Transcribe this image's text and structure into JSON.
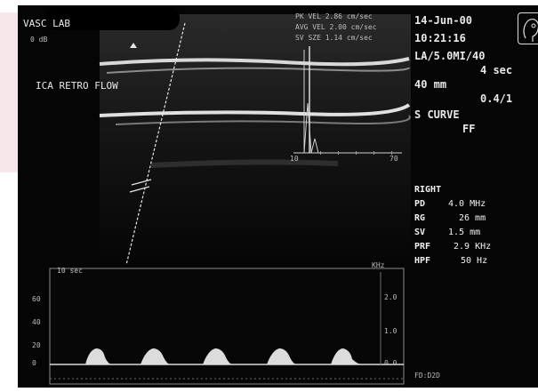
{
  "header": {
    "lab": "VASC LAB",
    "sub": "0 dB",
    "date": "14-Jun-00",
    "time": "10:21:16",
    "probe": "LA/5.0MI/40",
    "sweep": "4 sec",
    "depth": "40 mm",
    "ratio": "0.4/1",
    "curve_label": "S CURVE",
    "curve_value": "FF"
  },
  "velocities": [
    {
      "label": "PK VEL",
      "value": "2.86 cm/sec"
    },
    {
      "label": "AVG VEL",
      "value": "2.00 cm/sec"
    },
    {
      "label": "SV SZE",
      "value": "1.14 cm/sec"
    }
  ],
  "image_label": "ICA RETRO FLOW",
  "small_graph": {
    "x_min": "10",
    "x_max": "70"
  },
  "params": {
    "side": "RIGHT",
    "rows": [
      {
        "label": "PD",
        "value": "4.0 MHz"
      },
      {
        "label": "RG",
        "value": "26 mm"
      },
      {
        "label": "SV",
        "value": "1.5 mm"
      },
      {
        "label": "PRF",
        "value": "2.9 KHz"
      },
      {
        "label": "HPF",
        "value": "50 Hz"
      }
    ]
  },
  "spectral": {
    "top_left": "10 sec",
    "top_right": "KHz",
    "left_ticks": [
      "60",
      "40",
      "20",
      "0"
    ],
    "right_ticks": [
      "2.0",
      "1.0",
      "0.0"
    ],
    "footer": "FD:D2D"
  }
}
